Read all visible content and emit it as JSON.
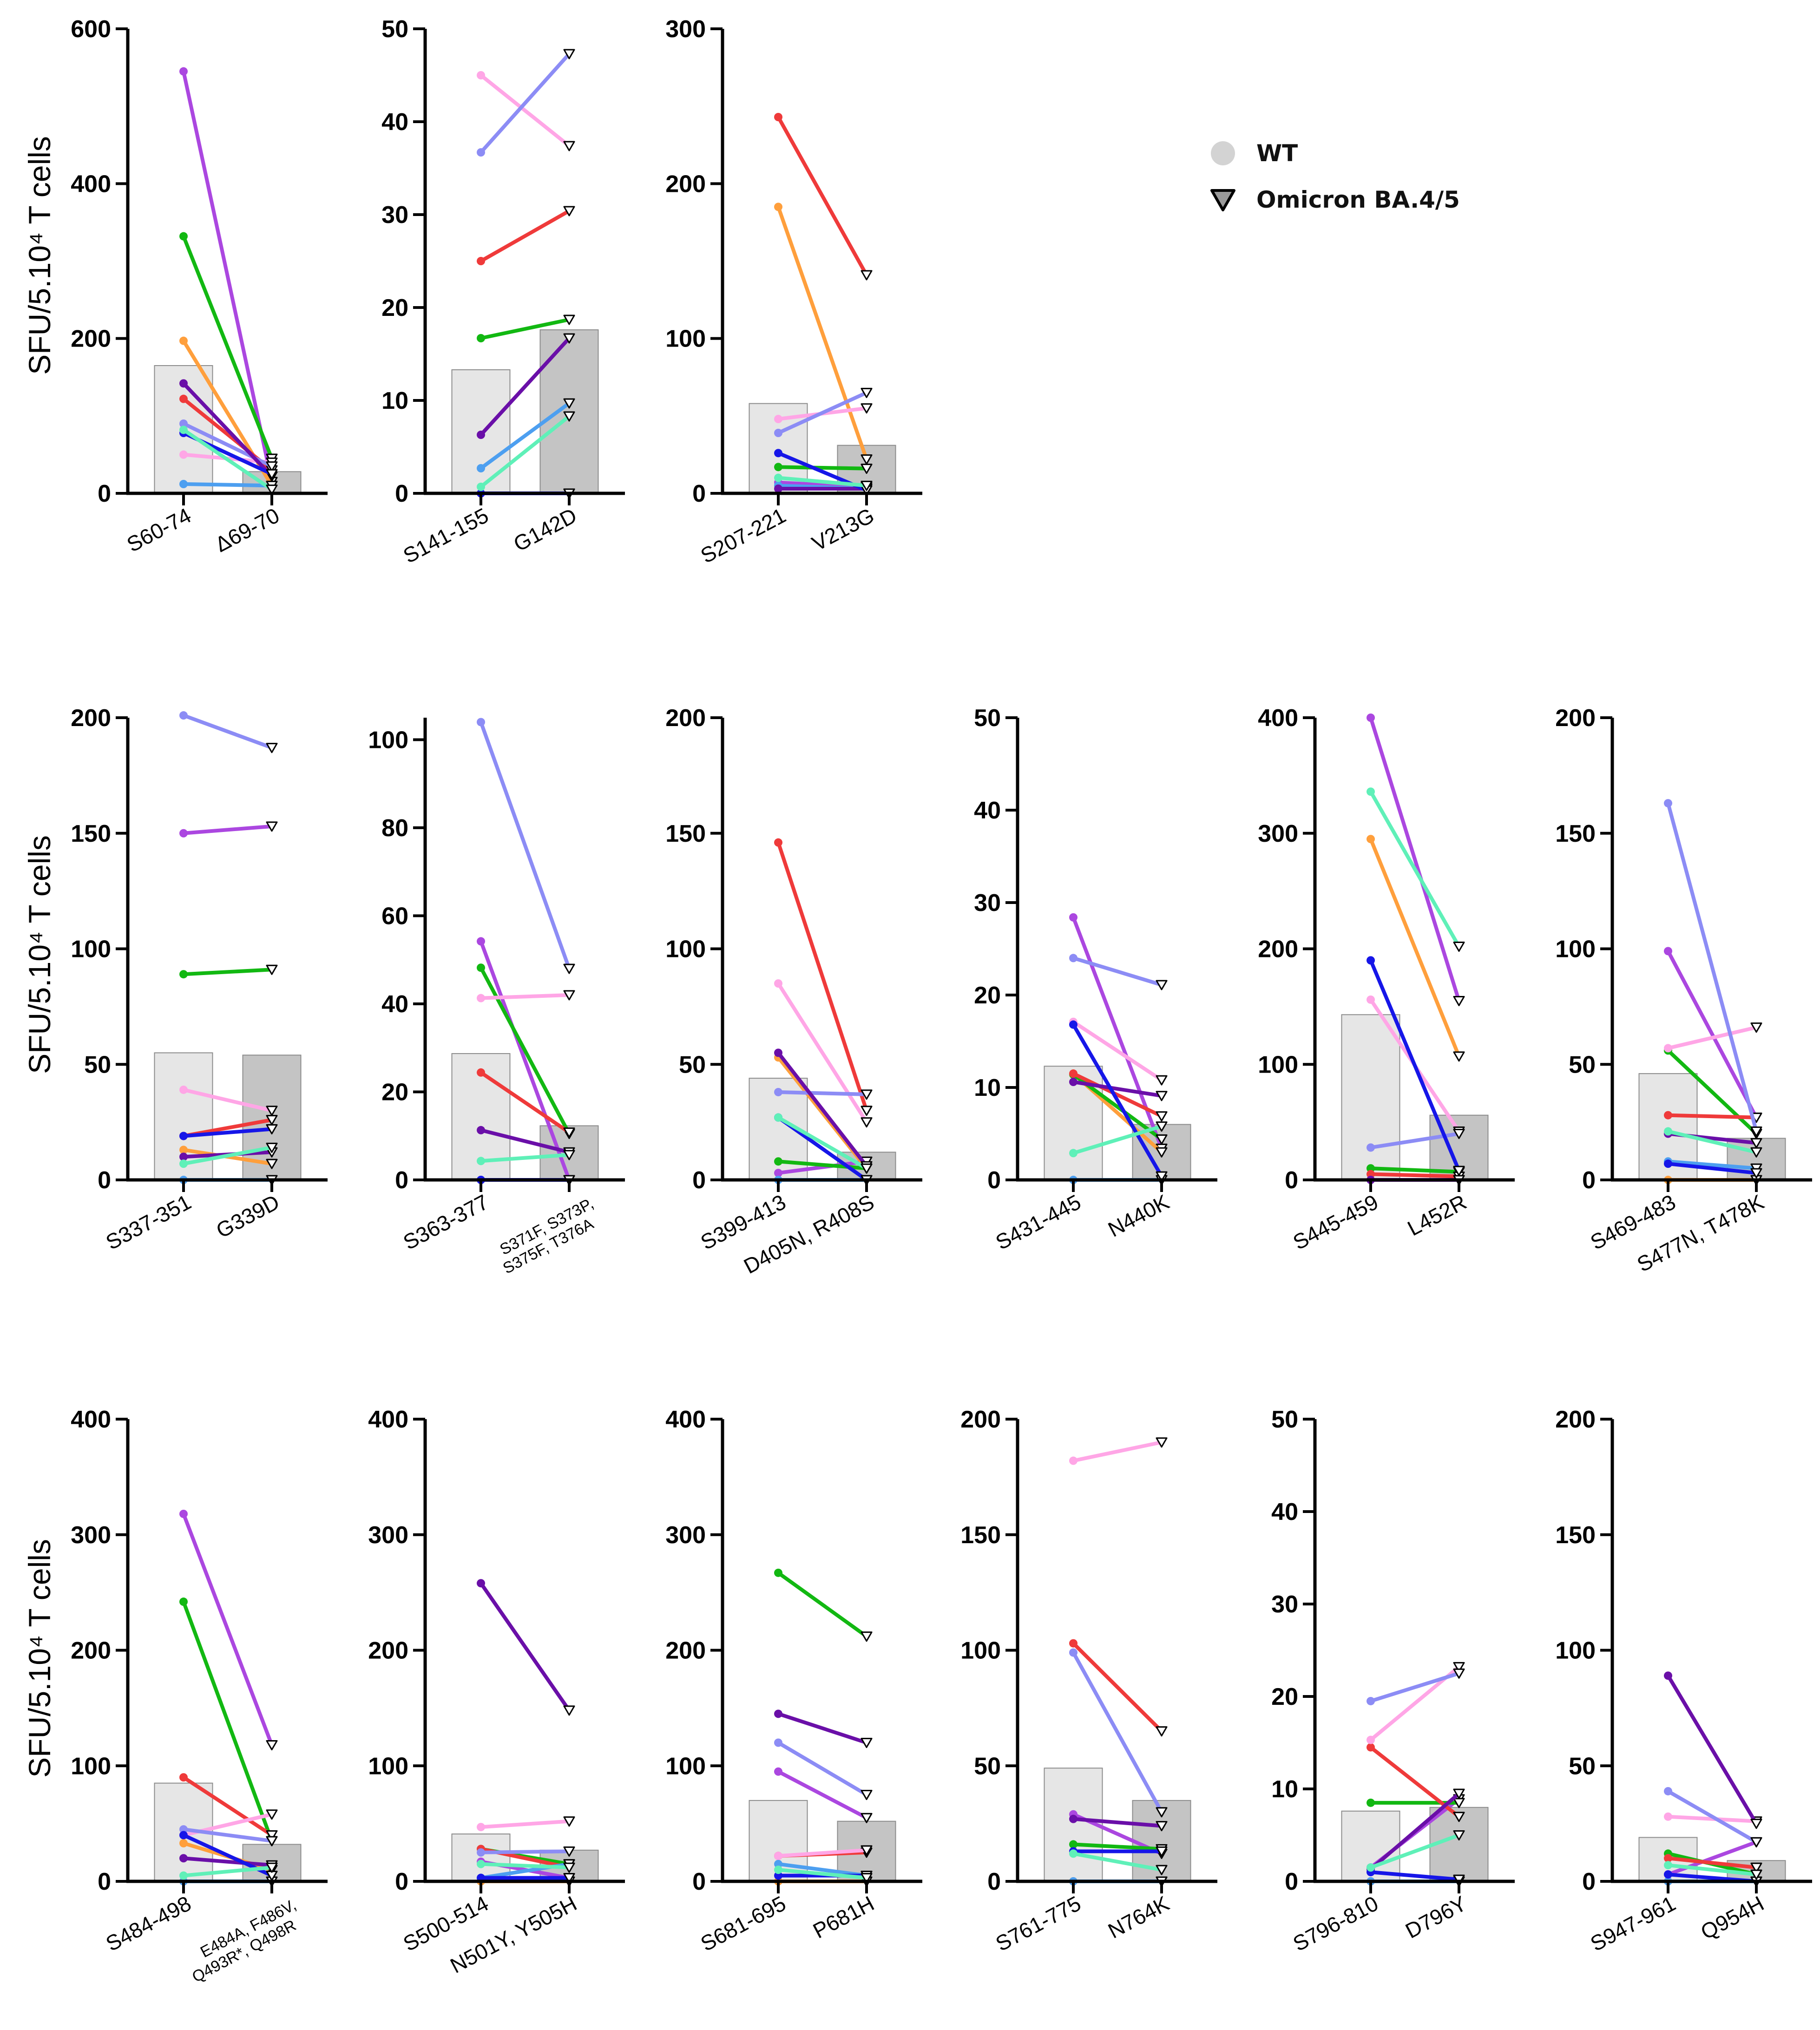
{
  "y_axis_label": "SFU/5.10⁴ T cells",
  "legend": [
    {
      "label": "WT",
      "marker": "circle",
      "color": "#d3d3d3"
    },
    {
      "label": "Omicron BA.4/5",
      "marker": "triangle-down",
      "color": "#9a9a9a"
    }
  ],
  "colors": {
    "wt_bar": "#e6e6e6",
    "mut_bar": "#c4c4c4",
    "bar_edge": "#8c8c8c",
    "axis": "#000000"
  },
  "donor_colors": [
    "#ab47e0",
    "#ff9f3c",
    "#12b812",
    "#ef3a3a",
    "#ffa6e6",
    "#8c8cf5",
    "#4d9ff0",
    "#6a0fa8",
    "#1616e8",
    "#5ff0b8"
  ],
  "chart_data": [
    {
      "type": "bar",
      "title": "S60-74 vs Δ69-70",
      "categories": [
        "S60-74",
        "Δ69-70"
      ],
      "tick_labels": [
        "0",
        "200",
        "400",
        "600"
      ],
      "ylim": [
        0,
        600
      ],
      "bars": [
        165,
        28
      ],
      "pairs": [
        [
          545,
          15
        ],
        [
          197,
          10
        ],
        [
          332,
          45
        ],
        [
          122,
          30
        ],
        [
          50,
          40
        ],
        [
          90,
          35
        ],
        [
          12,
          10
        ],
        [
          142,
          22
        ],
        [
          78,
          25
        ],
        [
          82,
          5
        ]
      ]
    },
    {
      "type": "bar",
      "title": "S141-155 vs G142D",
      "categories": [
        "S141-155",
        "G142D"
      ],
      "tick_labels": [
        "0",
        "10",
        "20",
        "30",
        "40",
        "50"
      ],
      "ylim": [
        0,
        50
      ],
      "bars": [
        13.3,
        17.6
      ],
      "pairs": [
        [
          0,
          0
        ],
        [
          0,
          0
        ],
        [
          16.7,
          18.7
        ],
        [
          25,
          30.4
        ],
        [
          45,
          37.4
        ],
        [
          36.7,
          47.3
        ],
        [
          2.7,
          9.7
        ],
        [
          6.3,
          16.7
        ],
        [
          0,
          0
        ],
        [
          0.7,
          8.3
        ]
      ]
    },
    {
      "type": "bar",
      "title": "S207-221 vs V213G",
      "categories": [
        "S207-221",
        "V213G"
      ],
      "tick_labels": [
        "0",
        "100",
        "200",
        "300"
      ],
      "ylim": [
        0,
        300
      ],
      "bars": [
        58,
        31
      ],
      "pairs": [
        [
          7,
          4
        ],
        [
          185,
          22
        ],
        [
          17,
          16
        ],
        [
          243,
          141
        ],
        [
          48,
          55
        ],
        [
          39,
          65
        ],
        [
          5,
          3
        ],
        [
          3,
          3
        ],
        [
          26,
          2
        ],
        [
          10,
          5
        ]
      ]
    },
    {
      "type": "bar",
      "title": "S337-351 vs G339D",
      "categories": [
        "S337-351",
        "G339D"
      ],
      "tick_labels": [
        "0",
        "50",
        "100",
        "150",
        "200"
      ],
      "ylim": [
        0,
        200
      ],
      "bars": [
        55,
        54
      ],
      "pairs": [
        [
          150,
          153
        ],
        [
          13,
          7
        ],
        [
          89,
          91
        ],
        [
          19,
          26
        ],
        [
          39,
          30
        ],
        [
          201,
          187
        ],
        [
          0,
          0
        ],
        [
          10,
          12
        ],
        [
          19,
          22
        ],
        [
          7,
          14
        ]
      ]
    },
    {
      "type": "bar",
      "title": "S363-377 vs S371F, S373P, S375F, T376A",
      "categories": [
        "S363-377",
        "S371F, S373P,",
        "S375F, T376A"
      ],
      "tick_labels": [
        "0",
        "20",
        "40",
        "60",
        "80",
        "100"
      ],
      "ylim": [
        0,
        105
      ],
      "bars": [
        28.7,
        12.3
      ],
      "pairs": [
        [
          54.2,
          0
        ],
        [
          0,
          0
        ],
        [
          48.2,
          10.5
        ],
        [
          24.4,
          10.8
        ],
        [
          41.3,
          42
        ],
        [
          104,
          48
        ],
        [
          0,
          0
        ],
        [
          11.3,
          6.3
        ],
        [
          0,
          0
        ],
        [
          4.3,
          5.7
        ]
      ]
    },
    {
      "type": "bar",
      "title": "S399-413 vs D405N, R408S",
      "categories": [
        "S399-413",
        "D405N, R408S"
      ],
      "tick_labels": [
        "0",
        "50",
        "100",
        "150",
        "200"
      ],
      "ylim": [
        0,
        200
      ],
      "bars": [
        44,
        12
      ],
      "pairs": [
        [
          3,
          8
        ],
        [
          53,
          5
        ],
        [
          8,
          5
        ],
        [
          146,
          30
        ],
        [
          85,
          25
        ],
        [
          38,
          37
        ],
        [
          0,
          0
        ],
        [
          55,
          6
        ],
        [
          27,
          0
        ],
        [
          27,
          5
        ]
      ]
    },
    {
      "type": "bar",
      "title": "S431-445 vs N440K",
      "categories": [
        "S431-445",
        "N440K"
      ],
      "tick_labels": [
        "0",
        "10",
        "20",
        "30",
        "40",
        "50"
      ],
      "ylim": [
        0,
        50
      ],
      "bars": [
        12.3,
        6
      ],
      "pairs": [
        [
          28.4,
          3.4
        ],
        [
          11.5,
          3
        ],
        [
          11.4,
          4.4
        ],
        [
          11.5,
          6.9
        ],
        [
          17.1,
          10.8
        ],
        [
          24,
          21.1
        ],
        [
          0,
          0
        ],
        [
          10.6,
          9.1
        ],
        [
          16.8,
          0.4
        ],
        [
          2.9,
          5.8
        ]
      ]
    },
    {
      "type": "bar",
      "title": "S445-459 vs L452R",
      "categories": [
        "S445-459",
        "L452R"
      ],
      "tick_labels": [
        "0",
        "100",
        "200",
        "300",
        "400"
      ],
      "ylim": [
        0,
        400
      ],
      "bars": [
        143,
        56
      ],
      "pairs": [
        [
          400,
          155
        ],
        [
          295,
          107
        ],
        [
          10,
          7
        ],
        [
          5,
          3
        ],
        [
          156,
          42
        ],
        [
          28,
          40
        ],
        [
          0,
          0
        ],
        [
          0,
          0
        ],
        [
          190,
          8
        ],
        [
          336,
          202
        ]
      ]
    },
    {
      "type": "bar",
      "title": "S469-483 vs S477N, T478K",
      "categories": [
        "S469-483",
        "S477N, T478K"
      ],
      "tick_labels": [
        "0",
        "50",
        "100",
        "150",
        "200"
      ],
      "ylim": [
        0,
        200
      ],
      "bars": [
        46,
        18
      ],
      "pairs": [
        [
          99,
          27
        ],
        [
          0,
          0
        ],
        [
          56,
          20
        ],
        [
          28,
          27
        ],
        [
          57,
          66
        ],
        [
          163,
          21
        ],
        [
          8,
          5
        ],
        [
          20,
          16
        ],
        [
          7,
          3
        ],
        [
          21,
          12
        ]
      ]
    },
    {
      "type": "bar",
      "title": "S484-498 vs E484A, F486V, Q493R*, Q498R",
      "categories": [
        "S484-498",
        "E484A,  F486V,",
        "Q493R*, Q498R"
      ],
      "tick_labels": [
        "0",
        "100",
        "200",
        "300",
        "400"
      ],
      "ylim": [
        0,
        400
      ],
      "bars": [
        85,
        32
      ],
      "pairs": [
        [
          318,
          118
        ],
        [
          33,
          10
        ],
        [
          242,
          35
        ],
        [
          90,
          40
        ],
        [
          40,
          58
        ],
        [
          45,
          35
        ],
        [
          0,
          0
        ],
        [
          20,
          14
        ],
        [
          40,
          5
        ],
        [
          5,
          12
        ]
      ]
    },
    {
      "type": "bar",
      "title": "S500-514 vs N501Y, Y505H",
      "categories": [
        "S500-514",
        "N501Y, Y505H"
      ],
      "tick_labels": [
        "0",
        "100",
        "200",
        "300",
        "400"
      ],
      "ylim": [
        0,
        400
      ],
      "bars": [
        41,
        27
      ],
      "pairs": [
        [
          17,
          3
        ],
        [
          0,
          0
        ],
        [
          28,
          15
        ],
        [
          28,
          12
        ],
        [
          47,
          52
        ],
        [
          25,
          26
        ],
        [
          3,
          15
        ],
        [
          258,
          148
        ],
        [
          3,
          3
        ],
        [
          15,
          12
        ]
      ]
    },
    {
      "type": "bar",
      "title": "S681-695 vs P681H",
      "categories": [
        "S681-695",
        "P681H"
      ],
      "tick_labels": [
        "0",
        "100",
        "200",
        "300",
        "400"
      ],
      "ylim": [
        0,
        400
      ],
      "bars": [
        70,
        52
      ],
      "pairs": [
        [
          95,
          55
        ],
        [
          0,
          0
        ],
        [
          267,
          212
        ],
        [
          22,
          25
        ],
        [
          22,
          27
        ],
        [
          120,
          75
        ],
        [
          15,
          5
        ],
        [
          145,
          120
        ],
        [
          5,
          5
        ],
        [
          10,
          3
        ]
      ]
    },
    {
      "type": "bar",
      "title": "S761-775 vs N764K",
      "categories": [
        "S761-775",
        "N764K"
      ],
      "tick_labels": [
        "0",
        "50",
        "100",
        "150",
        "200"
      ],
      "ylim": [
        0,
        200
      ],
      "bars": [
        49,
        35
      ],
      "pairs": [
        [
          29,
          12
        ],
        [
          0,
          0
        ],
        [
          16,
          14
        ],
        [
          103,
          65
        ],
        [
          182,
          190
        ],
        [
          99,
          30
        ],
        [
          0,
          0
        ],
        [
          27,
          24
        ],
        [
          13,
          13
        ],
        [
          12,
          5
        ]
      ]
    },
    {
      "type": "bar",
      "title": "S796-810 vs D796Y",
      "categories": [
        "S796-810",
        "D796Y"
      ],
      "tick_labels": [
        "0",
        "10",
        "20",
        "30",
        "40",
        "50"
      ],
      "ylim": [
        0,
        50
      ],
      "bars": [
        7.6,
        8
      ],
      "pairs": [
        [
          1.5,
          8.9
        ],
        [
          0,
          0
        ],
        [
          8.5,
          8.5
        ],
        [
          14.5,
          7
        ],
        [
          15.3,
          23.2
        ],
        [
          19.5,
          22.5
        ],
        [
          0,
          0
        ],
        [
          1.3,
          9.5
        ],
        [
          1,
          0.2
        ],
        [
          1.5,
          5
        ]
      ]
    },
    {
      "type": "bar",
      "title": "S947-961 vs Q954H",
      "categories": [
        "S947-961",
        "Q954H"
      ],
      "tick_labels": [
        "0",
        "50",
        "100",
        "150",
        "200"
      ],
      "ylim": [
        0,
        200
      ],
      "bars": [
        19,
        9
      ],
      "pairs": [
        [
          3,
          17
        ],
        [
          0,
          0
        ],
        [
          12,
          3
        ],
        [
          10,
          6
        ],
        [
          28,
          26
        ],
        [
          39,
          17
        ],
        [
          0,
          0
        ],
        [
          89,
          25
        ],
        [
          3,
          0
        ],
        [
          7,
          3
        ]
      ]
    }
  ]
}
